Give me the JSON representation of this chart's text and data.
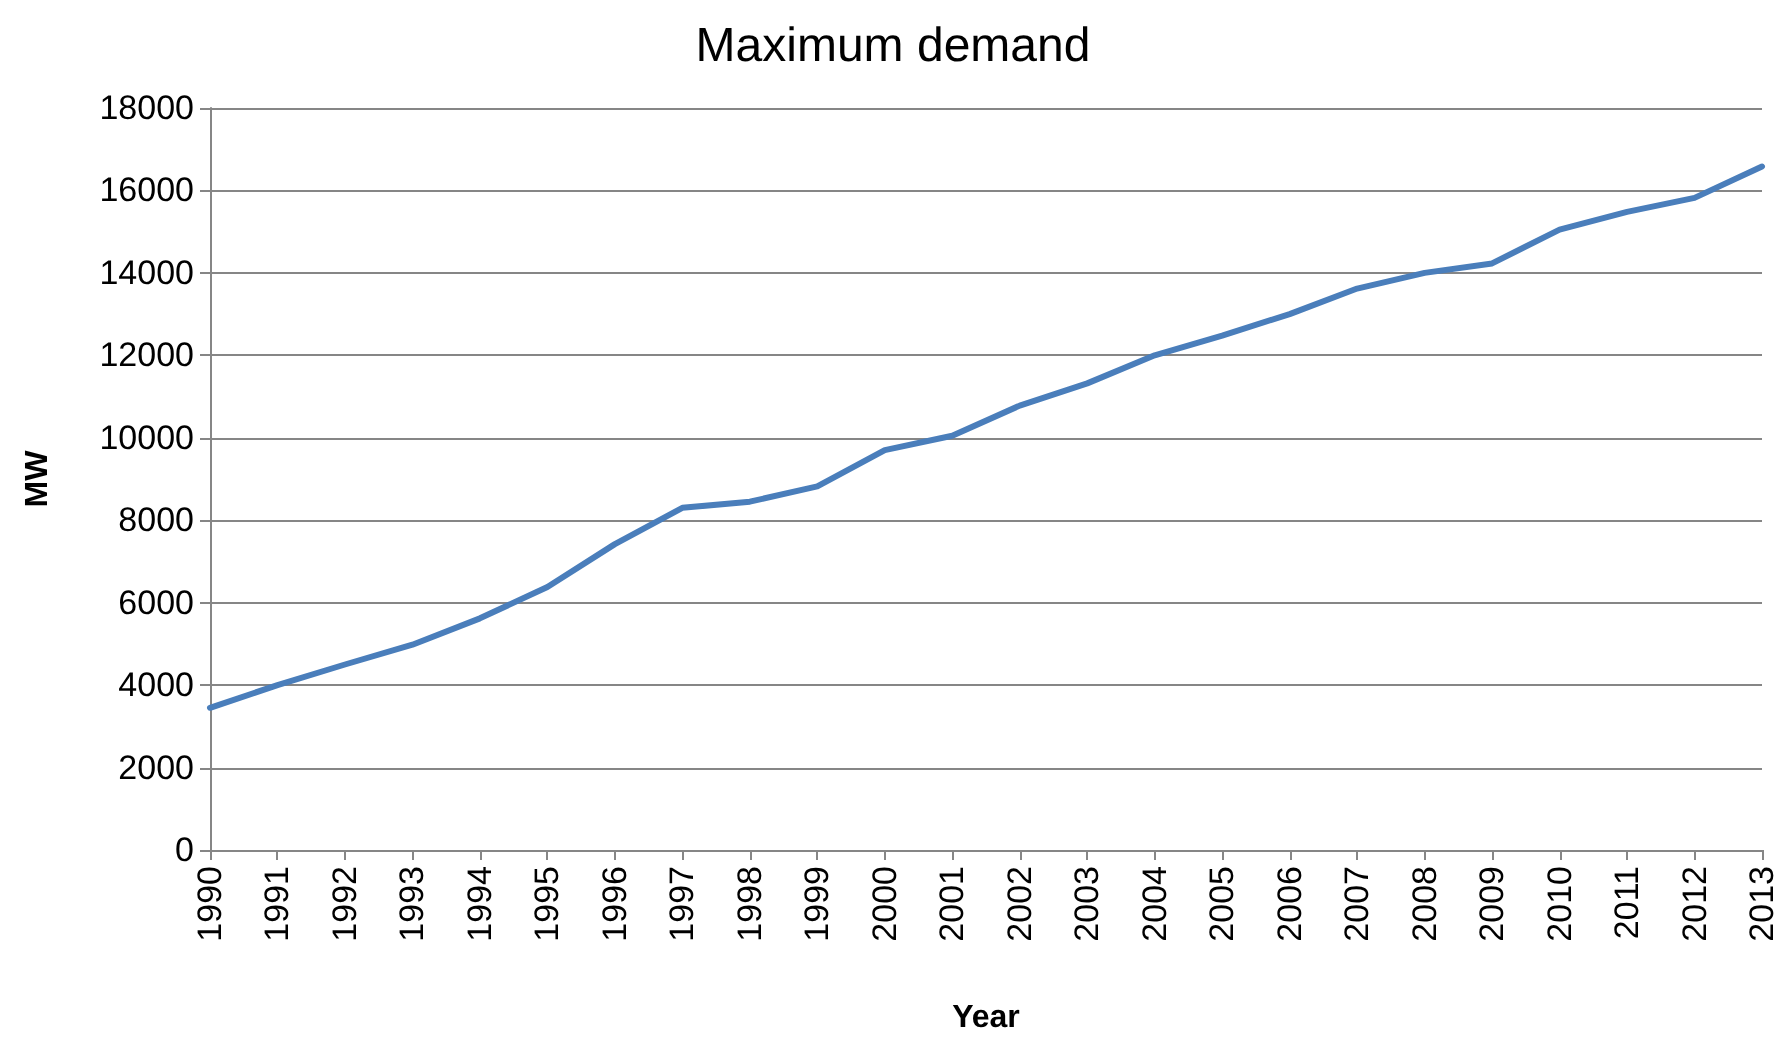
{
  "chart_data": {
    "type": "line",
    "title": "Maximum demand",
    "xlabel": "Year",
    "ylabel": "MW",
    "categories": [
      "1990",
      "1991",
      "1992",
      "1993",
      "1994",
      "1995",
      "1996",
      "1997",
      "1998",
      "1999",
      "2000",
      "2001",
      "2002",
      "2003",
      "2004",
      "2005",
      "2006",
      "2007",
      "2008",
      "2009",
      "2010",
      "2011",
      "2012",
      "2013"
    ],
    "series": [
      {
        "color": "#4a7ebb",
        "values": [
          3450,
          4000,
          4500,
          4980,
          5620,
          6380,
          7420,
          8300,
          8450,
          8820,
          9700,
          10050,
          10780,
          11320,
          12000,
          12480,
          13000,
          13620,
          14000,
          14230,
          15050,
          15480,
          15820,
          16580
        ]
      }
    ],
    "ylim": [
      0,
      18000
    ],
    "yticks": [
      0,
      2000,
      4000,
      6000,
      8000,
      10000,
      12000,
      14000,
      16000,
      18000
    ],
    "grid": "y",
    "marker": "none",
    "line_style": "solid"
  }
}
